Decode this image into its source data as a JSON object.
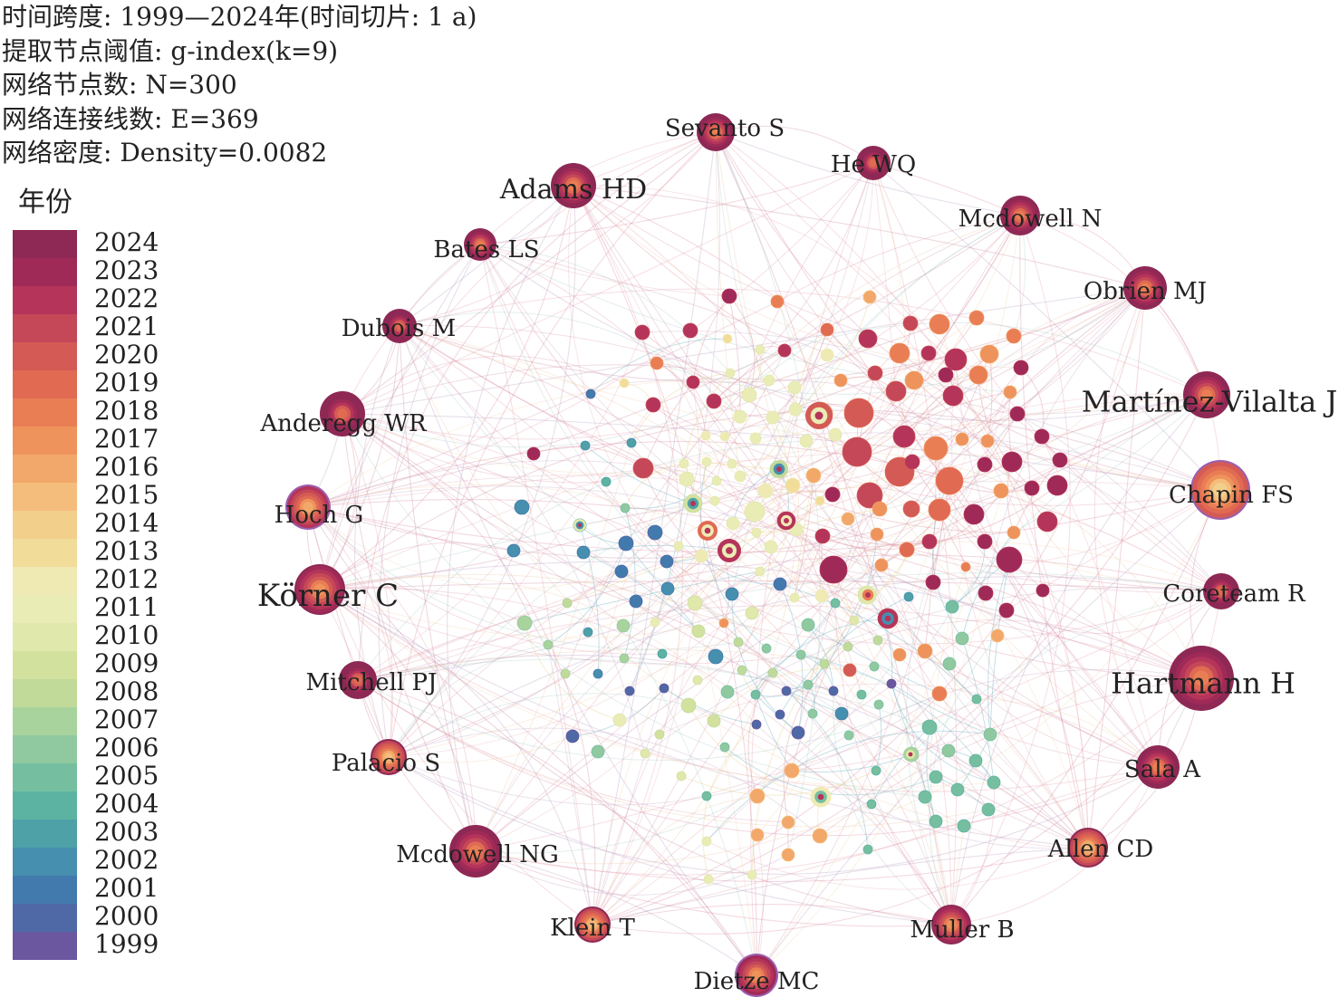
{
  "info_lines": [
    "时间跨度: 1999—2024年(时间切片: 1 a)",
    "提取节点阈值: g-index(k=9)",
    "网络节点数: N=300",
    "网络连接线数: E=369",
    "网络密度: Density=0.0082"
  ],
  "legend": {
    "title": "年份",
    "items": [
      {
        "year": "2024",
        "color": "#8e2854"
      },
      {
        "year": "2023",
        "color": "#a02a57"
      },
      {
        "year": "2022",
        "color": "#b5345a"
      },
      {
        "year": "2021",
        "color": "#c44858"
      },
      {
        "year": "2020",
        "color": "#d45a55"
      },
      {
        "year": "2019",
        "color": "#e06a52"
      },
      {
        "year": "2018",
        "color": "#e97e55"
      },
      {
        "year": "2017",
        "color": "#ee935c"
      },
      {
        "year": "2016",
        "color": "#f2a86a"
      },
      {
        "year": "2015",
        "color": "#f5bd7c"
      },
      {
        "year": "2014",
        "color": "#f3cf8c"
      },
      {
        "year": "2013",
        "color": "#f1dc9a"
      },
      {
        "year": "2012",
        "color": "#efeab4"
      },
      {
        "year": "2011",
        "color": "#eaecb5"
      },
      {
        "year": "2010",
        "color": "#e1e8ab"
      },
      {
        "year": "2009",
        "color": "#d3e19f"
      },
      {
        "year": "2008",
        "color": "#c1da9a"
      },
      {
        "year": "2007",
        "color": "#a9d39d"
      },
      {
        "year": "2006",
        "color": "#90c9a0"
      },
      {
        "year": "2005",
        "color": "#75bfa0"
      },
      {
        "year": "2004",
        "color": "#5db3a1"
      },
      {
        "year": "2003",
        "color": "#4ea1a7"
      },
      {
        "year": "2002",
        "color": "#468fae"
      },
      {
        "year": "2001",
        "color": "#437aad"
      },
      {
        "year": "2000",
        "color": "#4f68a6"
      },
      {
        "year": "1999",
        "color": "#6a57a0"
      }
    ]
  },
  "author_nodes": [
    {
      "label": "Sevanto S",
      "color": "#b5345a"
    },
    {
      "label": "He WQ",
      "color": "#a02a57"
    },
    {
      "label": "Adams HD",
      "color": "#b5345a"
    },
    {
      "label": "Mcdowell N",
      "color": "#b5345a"
    },
    {
      "label": "Bates LS",
      "color": "#b5345a"
    },
    {
      "label": "Obrien MJ",
      "color": "#b5345a"
    },
    {
      "label": "Dubois M",
      "color": "#a02a57"
    },
    {
      "label": "Martínez-Vilalta J",
      "color": "#b5345a"
    },
    {
      "label": "Anderegg WR",
      "color": "#a02a57"
    },
    {
      "label": "Chapin FS",
      "color": "#e97e55"
    },
    {
      "label": "Hoch G",
      "color": "#d45a55"
    },
    {
      "label": "Körner C",
      "color": "#c44858"
    },
    {
      "label": "Coreteam R",
      "color": "#a02a57"
    },
    {
      "label": "Hartmann H",
      "color": "#b5345a"
    },
    {
      "label": "Mitchell PJ",
      "color": "#a02a57"
    },
    {
      "label": "Sala A",
      "color": "#b5345a"
    },
    {
      "label": "Palacio S",
      "color": "#e06a52"
    },
    {
      "label": "Allen CD",
      "color": "#e06a52"
    },
    {
      "label": "Mcdowell NG",
      "color": "#b5345a"
    },
    {
      "label": "Klein T",
      "color": "#e06a52"
    },
    {
      "label": "Muller B",
      "color": "#c44858"
    },
    {
      "label": "Dietze MC",
      "color": "#c44858"
    }
  ]
}
